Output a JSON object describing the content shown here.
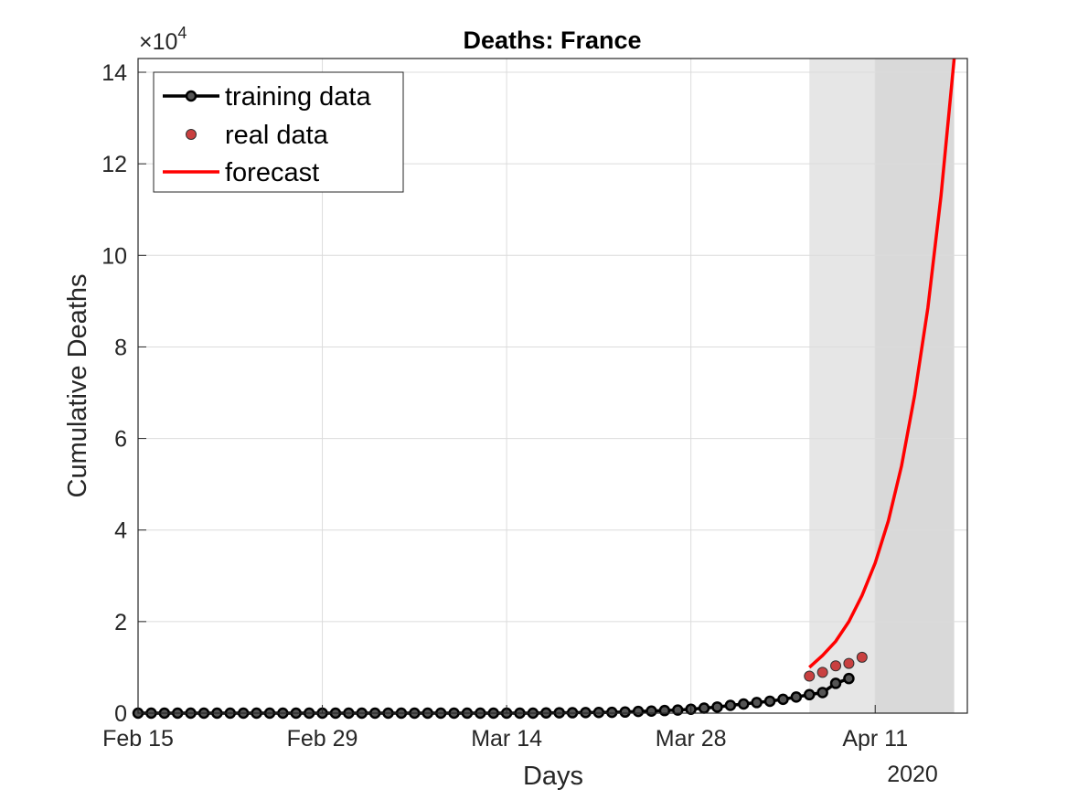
{
  "chart_data": {
    "type": "line",
    "title": "Deaths: France",
    "xlabel": "Days",
    "ylabel": "Cumulative Deaths",
    "y_exponent_label": "×10",
    "y_exponent_power": "4",
    "year_label": "2020",
    "x_tick_labels": [
      "Feb 15",
      "Feb 29",
      "Mar 14",
      "Mar 28",
      "Apr 11"
    ],
    "x_tick_dates": [
      "2020-02-15",
      "2020-02-29",
      "2020-03-14",
      "2020-03-28",
      "2020-04-11"
    ],
    "y_tick_labels": [
      "0",
      "2",
      "4",
      "6",
      "8",
      "10",
      "12",
      "14"
    ],
    "y_tick_values": [
      0,
      20000,
      40000,
      60000,
      80000,
      100000,
      120000,
      140000
    ],
    "xlim": [
      "2020-02-15",
      "2020-04-18"
    ],
    "ylim": [
      0,
      143000
    ],
    "grid": true,
    "legend_position": "top-left",
    "shaded_regions": [
      {
        "from": "2020-04-06",
        "to": "2020-04-11",
        "color": "#e6e6e6"
      },
      {
        "from": "2020-04-11",
        "to": "2020-04-17",
        "color": "#d9d9d9"
      }
    ],
    "series": [
      {
        "name": "training data",
        "color": "#000000",
        "x_start": "2020-02-15",
        "x_step_days": 1,
        "values": [
          0,
          0,
          0,
          0,
          0,
          0,
          0,
          0,
          0,
          0,
          0,
          0,
          0,
          0,
          0,
          0,
          0,
          0,
          0,
          0,
          0,
          0,
          0,
          0,
          0,
          0,
          0,
          0,
          0,
          0,
          0,
          48,
          79,
          91,
          127,
          148,
          175,
          244,
          372,
          450,
          562,
          674,
          860,
          1100,
          1331,
          1696,
          1995,
          2314,
          2606,
          3024,
          3523,
          4032,
          4503,
          6507,
          7560
        ]
      },
      {
        "name": "real data",
        "color": "#c94040",
        "x_start": "2020-04-06",
        "x_step_days": 1,
        "values": [
          8078,
          8911,
          10328,
          10869,
          12210
        ]
      },
      {
        "name": "forecast",
        "color": "#ff0000",
        "x_start": "2020-04-06",
        "x_step_days": 1,
        "values": [
          10000,
          12600,
          15700,
          20000,
          25700,
          32800,
          42000,
          54000,
          69500,
          88500,
          113000,
          143000
        ]
      }
    ]
  }
}
